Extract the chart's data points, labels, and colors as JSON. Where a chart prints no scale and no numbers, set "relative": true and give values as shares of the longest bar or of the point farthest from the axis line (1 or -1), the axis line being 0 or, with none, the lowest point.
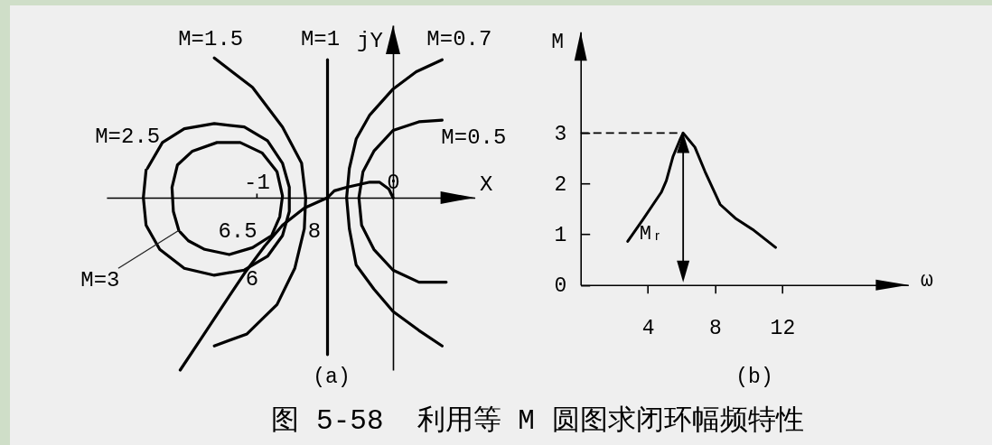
{
  "chart_data": [
    {
      "type": "line",
      "relative": true,
      "xlabel": "X",
      "ylabel": "jY",
      "xlim": [
        -2.1,
        0.6
      ],
      "xticks": [
        -1,
        0
      ],
      "series": [
        {
          "color": "#000000",
          "x": [
            -1.56,
            -1.4,
            -1.25,
            -1.09,
            -0.94,
            -0.81,
            -0.65,
            -0.48,
            -0.43,
            -0.34,
            -0.17,
            -0.1,
            -0.03,
            0
          ],
          "values": [
            -1,
            -0.81,
            -0.63,
            -0.44,
            -0.28,
            -0.16,
            -0.06,
            0,
            0.04,
            0.06,
            0.09,
            0.09,
            0.05,
            0
          ]
        },
        {
          "name": "M=1.5",
          "color": "#000000",
          "x": [
            -1.31,
            -1.03,
            -0.81,
            -0.67,
            -0.64,
            -0.65,
            -0.72,
            -0.85,
            -1.07,
            -1.31
          ],
          "values": [
            0.81,
            0.64,
            0.41,
            0.2,
            0,
            -0.18,
            -0.41,
            -0.62,
            -0.79,
            -0.86
          ]
        },
        {
          "name": "M=1",
          "color": "#000000",
          "x": [
            -0.48,
            -0.48
          ],
          "values": [
            0.8,
            -0.91
          ]
        },
        {
          "name": "M=0.7",
          "color": "#000000",
          "x": [
            0.36,
            0.17,
            0,
            -0.17,
            -0.27,
            -0.32,
            -0.34,
            -0.32,
            -0.27,
            -0.14,
            0,
            0.19,
            0.36
          ],
          "values": [
            0.8,
            0.73,
            0.63,
            0.48,
            0.34,
            0.17,
            0,
            -0.18,
            -0.39,
            -0.53,
            -0.66,
            -0.77,
            -0.86
          ]
        },
        {
          "name": "M=0.5",
          "color": "#000000",
          "x": [
            0.36,
            0.19,
            0,
            -0.14,
            -0.22,
            -0.25,
            -0.23,
            -0.14,
            0,
            0.19,
            0.39
          ],
          "values": [
            0.45,
            0.44,
            0.39,
            0.27,
            0.15,
            0,
            -0.16,
            -0.3,
            -0.42,
            -0.49,
            -0.49
          ]
        },
        {
          "name": "M=2.5",
          "color": "#000000",
          "x": [
            -1.8,
            -1.69,
            -1.53,
            -1.31,
            -1.09,
            -0.92,
            -0.81,
            -0.76,
            -0.76,
            -0.81,
            -0.92,
            -1.09,
            -1.31,
            -1.53,
            -1.71,
            -1.81,
            -1.83,
            -1.81
          ],
          "values": [
            0.17,
            0.32,
            0.4,
            0.43,
            0.41,
            0.33,
            0.2,
            0.06,
            -0.08,
            -0.22,
            -0.34,
            -0.42,
            -0.45,
            -0.41,
            -0.3,
            -0.16,
            0,
            0.16
          ]
        },
        {
          "name": "M=3",
          "color": "#000000",
          "x": [
            -1.57,
            -1.61,
            -1.62,
            -1.58,
            -1.47,
            -1.29,
            -1.12,
            -0.96,
            -0.85,
            -0.81,
            -0.83,
            -0.89,
            -1.03,
            -1.2,
            -1.38,
            -1.5,
            -1.56
          ],
          "values": [
            -0.19,
            -0.08,
            0.06,
            0.19,
            0.27,
            0.32,
            0.32,
            0.26,
            0.15,
            0.01,
            -0.11,
            -0.22,
            -0.29,
            -0.33,
            -0.3,
            -0.25,
            -0.2
          ]
        }
      ],
      "annotations": [
        "6",
        "6.5",
        "8",
        "(a)"
      ]
    },
    {
      "type": "line",
      "xlabel": "ω",
      "ylabel": "M",
      "x": [
        2.8,
        3.7,
        4.8,
        5.1,
        5.5,
        5.9,
        6.1,
        6.8,
        7.4,
        8.3,
        9.2,
        10.3,
        11.6
      ],
      "values": [
        0.86,
        1.29,
        1.83,
        2.06,
        2.54,
        2.86,
        3.0,
        2.72,
        2.24,
        1.59,
        1.32,
        1.08,
        0.74
      ],
      "color": "#000000",
      "xlim": [
        0,
        19.5
      ],
      "ylim": [
        0,
        5
      ],
      "xticks": [
        4,
        8,
        12
      ],
      "yticks": [
        0,
        1,
        2,
        3
      ],
      "ref_lines": [
        {
          "axis": "y",
          "value": 3,
          "line_style": "dashed"
        }
      ],
      "annotations": [
        "Mᵣ",
        "(b)",
        "图 5-58  利用等 M 圆图求闭环幅频特性"
      ]
    }
  ]
}
